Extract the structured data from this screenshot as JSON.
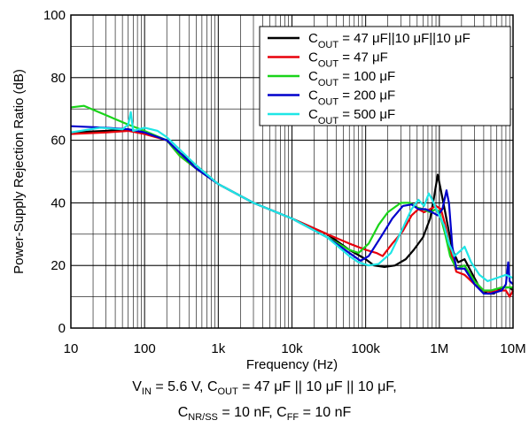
{
  "chart_data": {
    "type": "line",
    "xlabel": "Frequency (Hz)",
    "ylabel": "Power-Supply Rejection Ratio (dB)",
    "xscale": "log",
    "xlim": [
      10,
      10000000
    ],
    "ylim": [
      0,
      100
    ],
    "grid": true,
    "legend_position": "top-right",
    "x_tick_labels": [
      "10",
      "100",
      "1k",
      "10k",
      "100k",
      "1M",
      "10M"
    ],
    "y_tick_labels": [
      "0",
      "20",
      "40",
      "60",
      "80",
      "100"
    ],
    "x_tick_values": [
      10,
      100,
      1000,
      10000,
      100000,
      1000000,
      10000000
    ],
    "y_tick_values": [
      0,
      20,
      40,
      60,
      80,
      100
    ],
    "series": [
      {
        "name": "47 μF||10 μF||10 μF",
        "color": "#000000",
        "points": [
          [
            10,
            62.5
          ],
          [
            30,
            63
          ],
          [
            60,
            63.5
          ],
          [
            100,
            62.5
          ],
          [
            200,
            60
          ],
          [
            300,
            56
          ],
          [
            500,
            52
          ],
          [
            1000,
            46
          ],
          [
            3000,
            40
          ],
          [
            10000,
            35
          ],
          [
            30000,
            30
          ],
          [
            60000,
            25
          ],
          [
            100000,
            22
          ],
          [
            130000,
            20
          ],
          [
            180000,
            19.5
          ],
          [
            250000,
            20
          ],
          [
            350000,
            22
          ],
          [
            450000,
            25
          ],
          [
            600000,
            29
          ],
          [
            750000,
            35
          ],
          [
            850000,
            42
          ],
          [
            950000,
            49
          ],
          [
            1050000,
            44
          ],
          [
            1200000,
            37
          ],
          [
            1500000,
            25
          ],
          [
            1800000,
            21
          ],
          [
            2200000,
            22
          ],
          [
            2700000,
            18
          ],
          [
            3500000,
            13
          ],
          [
            4500000,
            11
          ],
          [
            5500000,
            11
          ],
          [
            7000000,
            13
          ],
          [
            9000000,
            13
          ],
          [
            10000000,
            12
          ]
        ]
      },
      {
        "name": "47 μF",
        "color": "#e8000b",
        "points": [
          [
            10,
            62
          ],
          [
            30,
            62.5
          ],
          [
            60,
            63
          ],
          [
            100,
            62
          ],
          [
            200,
            60
          ],
          [
            300,
            55
          ],
          [
            500,
            51
          ],
          [
            1000,
            46
          ],
          [
            3000,
            40
          ],
          [
            10000,
            35
          ],
          [
            30000,
            30
          ],
          [
            60000,
            27
          ],
          [
            100000,
            25
          ],
          [
            140000,
            24
          ],
          [
            170000,
            23
          ],
          [
            230000,
            27
          ],
          [
            320000,
            31
          ],
          [
            420000,
            36
          ],
          [
            520000,
            38
          ],
          [
            620000,
            37
          ],
          [
            750000,
            38
          ],
          [
            900000,
            39
          ],
          [
            1050000,
            38
          ],
          [
            1200000,
            33
          ],
          [
            1400000,
            25
          ],
          [
            1700000,
            18
          ],
          [
            2200000,
            17
          ],
          [
            3000000,
            14
          ],
          [
            4000000,
            12
          ],
          [
            5000000,
            11.5
          ],
          [
            6500000,
            12
          ],
          [
            8000000,
            12
          ],
          [
            9000000,
            10
          ],
          [
            10000000,
            12
          ]
        ]
      },
      {
        "name": "100 μF",
        "color": "#1ad41a",
        "points": [
          [
            10,
            70.5
          ],
          [
            15,
            71
          ],
          [
            30,
            68
          ],
          [
            60,
            65
          ],
          [
            100,
            63
          ],
          [
            200,
            60
          ],
          [
            300,
            55
          ],
          [
            500,
            51
          ],
          [
            1000,
            46
          ],
          [
            3000,
            40
          ],
          [
            10000,
            35
          ],
          [
            30000,
            29
          ],
          [
            60000,
            25
          ],
          [
            80000,
            24
          ],
          [
            110000,
            27
          ],
          [
            150000,
            33
          ],
          [
            200000,
            37
          ],
          [
            300000,
            40
          ],
          [
            400000,
            40
          ],
          [
            500000,
            38.5
          ],
          [
            600000,
            38
          ],
          [
            750000,
            37
          ],
          [
            900000,
            38
          ],
          [
            1000000,
            37
          ],
          [
            1200000,
            30
          ],
          [
            1400000,
            23
          ],
          [
            1700000,
            19
          ],
          [
            2200000,
            20
          ],
          [
            3000000,
            15
          ],
          [
            4000000,
            12
          ],
          [
            5000000,
            12
          ],
          [
            7000000,
            13
          ],
          [
            10000000,
            13
          ]
        ]
      },
      {
        "name": "200 μF",
        "color": "#0000cc",
        "points": [
          [
            10,
            64.5
          ],
          [
            30,
            64
          ],
          [
            60,
            63.5
          ],
          [
            100,
            62.5
          ],
          [
            200,
            60
          ],
          [
            300,
            56
          ],
          [
            500,
            51
          ],
          [
            1000,
            46
          ],
          [
            3000,
            40
          ],
          [
            10000,
            35
          ],
          [
            30000,
            29
          ],
          [
            60000,
            24
          ],
          [
            85000,
            21.5
          ],
          [
            110000,
            23
          ],
          [
            160000,
            29
          ],
          [
            230000,
            35
          ],
          [
            320000,
            39
          ],
          [
            420000,
            39.5
          ],
          [
            520000,
            38
          ],
          [
            650000,
            38
          ],
          [
            800000,
            37
          ],
          [
            950000,
            36
          ],
          [
            1100000,
            38
          ],
          [
            1250000,
            44
          ],
          [
            1350000,
            40
          ],
          [
            1500000,
            26
          ],
          [
            1700000,
            19
          ],
          [
            2200000,
            19
          ],
          [
            3000000,
            14
          ],
          [
            4000000,
            11
          ],
          [
            5000000,
            11
          ],
          [
            7000000,
            12
          ],
          [
            8000000,
            14
          ],
          [
            8600000,
            21
          ],
          [
            9000000,
            15
          ],
          [
            10000000,
            14
          ]
        ]
      },
      {
        "name": "500 μF",
        "color": "#1ee6e6",
        "points": [
          [
            10,
            62.5
          ],
          [
            25,
            64
          ],
          [
            50,
            63.5
          ],
          [
            60,
            65
          ],
          [
            65,
            69
          ],
          [
            70,
            63
          ],
          [
            100,
            64
          ],
          [
            150,
            63
          ],
          [
            200,
            61
          ],
          [
            300,
            57
          ],
          [
            500,
            52
          ],
          [
            1000,
            46
          ],
          [
            3000,
            40
          ],
          [
            10000,
            35
          ],
          [
            30000,
            29
          ],
          [
            60000,
            23
          ],
          [
            80000,
            21
          ],
          [
            110000,
            20
          ],
          [
            150000,
            20.5
          ],
          [
            220000,
            24
          ],
          [
            320000,
            32
          ],
          [
            420000,
            38
          ],
          [
            520000,
            41
          ],
          [
            620000,
            39
          ],
          [
            720000,
            43
          ],
          [
            800000,
            41
          ],
          [
            950000,
            37
          ],
          [
            1150000,
            33
          ],
          [
            1350000,
            27
          ],
          [
            1600000,
            23
          ],
          [
            2000000,
            25
          ],
          [
            2200000,
            26
          ],
          [
            2700000,
            21
          ],
          [
            3500000,
            17
          ],
          [
            4500000,
            15
          ],
          [
            6000000,
            16
          ],
          [
            8000000,
            17
          ],
          [
            10000000,
            16
          ]
        ]
      }
    ]
  },
  "legend": {
    "prefix": "C",
    "sub": "OUT",
    "items": [
      " = 47 μF||10 μF||10 μF",
      " = 47 μF",
      " = 100 μF",
      " = 200 μF",
      " = 500 μF"
    ]
  },
  "caption": {
    "vin_prefix": "V",
    "vin_sub": "IN",
    "vin_text": " = 5.6 V, ",
    "cout_prefix": "C",
    "cout_sub": "OUT",
    "cout_text": " = 47 μF || 10 μF || 10 μF,",
    "cnr_prefix": "C",
    "cnr_sub": "NR/SS",
    "cnr_text": " = 10 nF, ",
    "cff_prefix": "C",
    "cff_sub": "FF",
    "cff_text": " = 10 nF"
  }
}
